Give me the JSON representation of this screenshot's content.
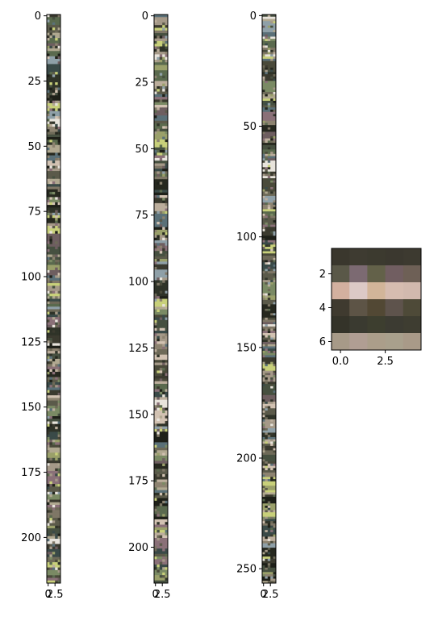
{
  "chart_data": [
    {
      "type": "heatmap",
      "title": "",
      "xlabel": "",
      "ylabel": "",
      "shape": [
        218,
        5
      ],
      "ylim": [
        217.5,
        -0.5
      ],
      "xlim": [
        -0.5,
        4.5
      ],
      "y_ticks": [
        0,
        25,
        50,
        75,
        100,
        125,
        150,
        175,
        200
      ],
      "y_tick_labels": [
        "0",
        "25",
        "50",
        "75",
        "100",
        "125",
        "150",
        "175",
        "200"
      ],
      "x_ticks": [
        0,
        2.5
      ],
      "x_tick_labels": [
        "0",
        "2.5"
      ],
      "grid": false
    },
    {
      "type": "heatmap",
      "title": "",
      "xlabel": "",
      "ylabel": "",
      "shape": [
        214,
        5
      ],
      "ylim": [
        213.5,
        -0.5
      ],
      "xlim": [
        -0.5,
        4.5
      ],
      "y_ticks": [
        0,
        25,
        50,
        75,
        100,
        125,
        150,
        175,
        200
      ],
      "y_tick_labels": [
        "0",
        "25",
        "50",
        "75",
        "100",
        "125",
        "150",
        "175",
        "200"
      ],
      "x_ticks": [
        0,
        2.5
      ],
      "x_tick_labels": [
        "0",
        "2.5"
      ],
      "grid": false
    },
    {
      "type": "heatmap",
      "title": "",
      "xlabel": "",
      "ylabel": "",
      "shape": [
        257,
        5
      ],
      "ylim": [
        256.5,
        -0.5
      ],
      "xlim": [
        -0.5,
        4.5
      ],
      "y_ticks": [
        0,
        50,
        100,
        150,
        200,
        250
      ],
      "y_tick_labels": [
        "0",
        "50",
        "100",
        "150",
        "200",
        "250"
      ],
      "x_ticks": [
        0,
        2.5
      ],
      "x_tick_labels": [
        "0",
        "2.5"
      ],
      "grid": false
    },
    {
      "type": "heatmap",
      "title": "",
      "xlabel": "",
      "ylabel": "",
      "shape": [
        6,
        5
      ],
      "ylim": [
        6.5,
        0.5
      ],
      "xlim": [
        -0.5,
        4.5
      ],
      "y_ticks": [
        2,
        4,
        6
      ],
      "y_tick_labels": [
        "2",
        "4",
        "6"
      ],
      "x_ticks": [
        0,
        2.5
      ],
      "x_tick_labels": [
        "0.0",
        "2.5"
      ],
      "grid": false,
      "cells": [
        [
          "#3a372d",
          "#3e3b31",
          "#3c3a2f",
          "#3b382f",
          "#3d3a30"
        ],
        [
          "#5a5848",
          "#7c6a72",
          "#636149",
          "#715e61",
          "#6e6056"
        ],
        [
          "#d3b09f",
          "#dcc9c6",
          "#d2b599",
          "#d6bcb0",
          "#d2b9ae"
        ],
        [
          "#3f3a2f",
          "#5d5446",
          "#524834",
          "#5e534c",
          "#4e4a38"
        ],
        [
          "#343329",
          "#3a3a30",
          "#3d3e2f",
          "#3c3b32",
          "#3e3d31"
        ],
        [
          "#a79a88",
          "#b09e93",
          "#ab9e8a",
          "#a9a08c",
          "#a99a88"
        ]
      ]
    }
  ]
}
